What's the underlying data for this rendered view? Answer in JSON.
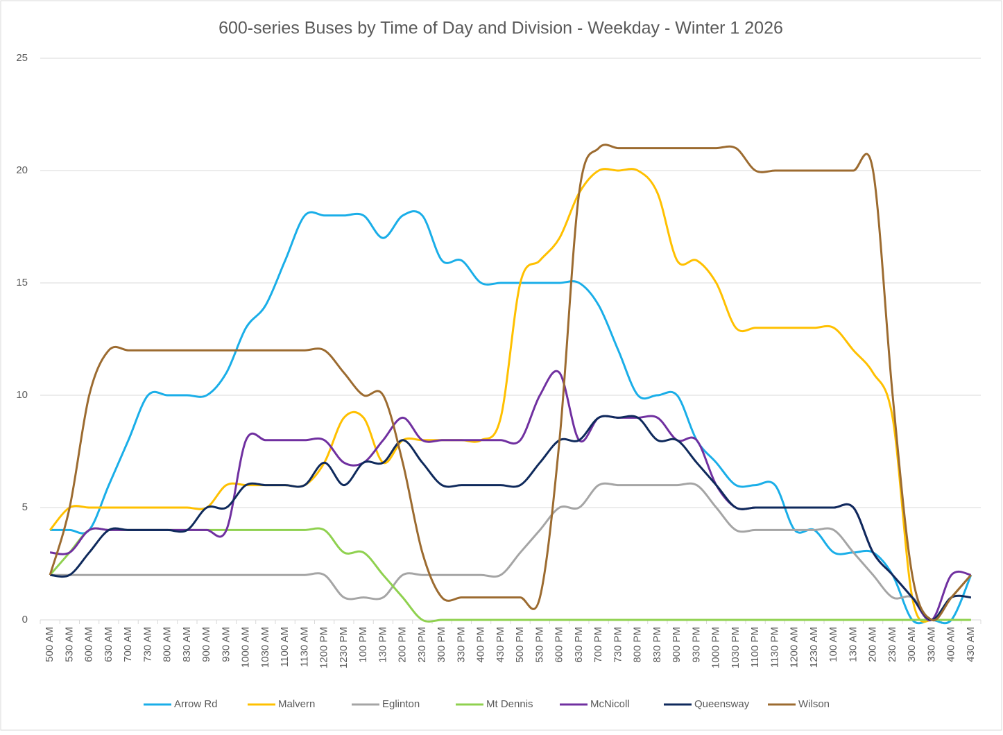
{
  "chart_data": {
    "type": "line",
    "title": "600-series Buses by Time of Day and Division - Weekday - Winter 1 2026",
    "categories": [
      "500 AM",
      "530 AM",
      "600 AM",
      "630 AM",
      "700 AM",
      "730 AM",
      "800 AM",
      "830 AM",
      "900 AM",
      "930 AM",
      "1000 AM",
      "1030 AM",
      "1100 AM",
      "1130 AM",
      "1200 PM",
      "1230 PM",
      "100 PM",
      "130 PM",
      "200 PM",
      "230 PM",
      "300 PM",
      "330 PM",
      "400 PM",
      "430 PM",
      "500 PM",
      "530 PM",
      "600 PM",
      "630 PM",
      "700 PM",
      "730 PM",
      "800 PM",
      "830 PM",
      "900 PM",
      "930 PM",
      "1000 PM",
      "1030 PM",
      "1100 PM",
      "1130 PM",
      "1200 AM",
      "1230 AM",
      "100 AM",
      "130 AM",
      "200 AM",
      "230 AM",
      "300 AM",
      "330 AM",
      "400 AM",
      "430 AM"
    ],
    "series": [
      {
        "name": "Arrow Rd",
        "color": "#1aaee8",
        "values": [
          4,
          4,
          4,
          6,
          8,
          10,
          10,
          10,
          10,
          11,
          13,
          14,
          16,
          18,
          18,
          18,
          18,
          17,
          18,
          18,
          16,
          16,
          15,
          15,
          15,
          15,
          15,
          15,
          14,
          12,
          10,
          10,
          10,
          8,
          7,
          6,
          6,
          6,
          4,
          4,
          3,
          3,
          3,
          2,
          0,
          0,
          0,
          2
        ]
      },
      {
        "name": "Malvern",
        "color": "#ffc000",
        "values": [
          4,
          5,
          5,
          5,
          5,
          5,
          5,
          5,
          5,
          6,
          6,
          6,
          6,
          6,
          7,
          9,
          9,
          7,
          8,
          8,
          8,
          8,
          8,
          9,
          15,
          16,
          17,
          19,
          20,
          20,
          20,
          19,
          16,
          16,
          15,
          13,
          13,
          13,
          13,
          13,
          13,
          12,
          11,
          9,
          1,
          0,
          1,
          2
        ]
      },
      {
        "name": "Eglinton",
        "color": "#a5a5a5",
        "values": [
          2,
          2,
          2,
          2,
          2,
          2,
          2,
          2,
          2,
          2,
          2,
          2,
          2,
          2,
          2,
          1,
          1,
          1,
          2,
          2,
          2,
          2,
          2,
          2,
          3,
          4,
          5,
          5,
          6,
          6,
          6,
          6,
          6,
          6,
          5,
          4,
          4,
          4,
          4,
          4,
          4,
          3,
          2,
          1,
          1,
          0,
          1,
          2
        ]
      },
      {
        "name": "Mt Dennis",
        "color": "#8fd14f",
        "values": [
          2,
          3,
          4,
          4,
          4,
          4,
          4,
          4,
          4,
          4,
          4,
          4,
          4,
          4,
          4,
          3,
          3,
          2,
          1,
          0,
          0,
          0,
          0,
          0,
          0,
          0,
          0,
          0,
          0,
          0,
          0,
          0,
          0,
          0,
          0,
          0,
          0,
          0,
          0,
          0,
          0,
          0,
          0,
          0,
          0,
          0,
          0,
          0
        ]
      },
      {
        "name": "McNicoll",
        "color": "#7030a0",
        "values": [
          3,
          3,
          4,
          4,
          4,
          4,
          4,
          4,
          4,
          4,
          8,
          8,
          8,
          8,
          8,
          7,
          7,
          8,
          9,
          8,
          8,
          8,
          8,
          8,
          8,
          10,
          11,
          8,
          9,
          9,
          9,
          9,
          8,
          8,
          6,
          5,
          5,
          5,
          5,
          5,
          5,
          5,
          3,
          2,
          1,
          0,
          2,
          2
        ]
      },
      {
        "name": "Queensway",
        "color": "#0f2a5c",
        "values": [
          2,
          2,
          3,
          4,
          4,
          4,
          4,
          4,
          5,
          5,
          6,
          6,
          6,
          6,
          7,
          6,
          7,
          7,
          8,
          7,
          6,
          6,
          6,
          6,
          6,
          7,
          8,
          8,
          9,
          9,
          9,
          8,
          8,
          7,
          6,
          5,
          5,
          5,
          5,
          5,
          5,
          5,
          3,
          2,
          1,
          0,
          1,
          1
        ]
      },
      {
        "name": "Wilson",
        "color": "#9c6b30",
        "values": [
          2,
          5,
          10,
          12,
          12,
          12,
          12,
          12,
          12,
          12,
          12,
          12,
          12,
          12,
          12,
          11,
          10,
          10,
          7,
          3,
          1,
          1,
          1,
          1,
          1,
          1,
          8,
          19,
          21,
          21,
          21,
          21,
          21,
          21,
          21,
          21,
          20,
          20,
          20,
          20,
          20,
          20,
          20,
          10,
          2,
          0,
          1,
          2
        ]
      }
    ],
    "ylim": [
      0,
      25
    ],
    "yticks": [
      0,
      5,
      10,
      15,
      20,
      25
    ],
    "grid": true
  }
}
